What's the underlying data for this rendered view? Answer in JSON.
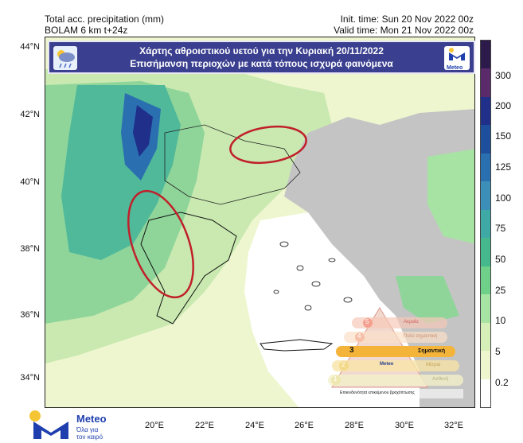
{
  "header": {
    "line1_left": "Total acc. precipitation (mm)",
    "line2_left": "BOLAM 6 km t+24z",
    "line1_right": "Init. time: Sun 20 Nov 2022 00z",
    "line2_right": "Valid time: Mon 21 Nov 2022 00z"
  },
  "banner": {
    "title": "Χάρτης αθροιστικού υετού για την Κυριακή 20/11/2022",
    "subtitle": "Επισήμανση περιοχών με κατά τόπους ισχυρά φαινόμενα",
    "right_logo_text": "Meteo"
  },
  "axes": {
    "lat_ticks": [
      "44°N",
      "42°N",
      "40°N",
      "38°N",
      "36°N",
      "34°N"
    ],
    "lon_ticks": [
      "20°E",
      "22°E",
      "24°E",
      "26°E",
      "28°E",
      "30°E",
      "32°E"
    ]
  },
  "colorbar": {
    "labels": [
      "300",
      "200",
      "150",
      "125",
      "100",
      "75",
      "50",
      "25",
      "10",
      "5",
      "0.2"
    ],
    "colors": [
      "#2b1a4a",
      "#5b2a6b",
      "#1f2f8a",
      "#1d4f9c",
      "#2a6fb0",
      "#3b8fb8",
      "#3ea9a5",
      "#45b98d",
      "#6fd08a",
      "#a7e3a3",
      "#d6efb9",
      "#eef6cf",
      "#ffffff"
    ]
  },
  "warning_scale": {
    "levels": [
      "1",
      "2",
      "3",
      "4",
      "5"
    ],
    "level_labels": [
      "Ακραία",
      "Πολύ σημαντική",
      "Σημαντική",
      "Μέτρια",
      "Ασθενή"
    ],
    "current_level": 3,
    "logo_text": "Meteo",
    "caption": "Επικινδυνότητα επικείμενου βροχόπτωσης"
  },
  "footer_logo": {
    "brand": "Meteo",
    "tagline_1": "Όλα για",
    "tagline_2": "τον καιρό"
  },
  "colors": {
    "sea_land_bg": "#d9efba",
    "turkey_land": "#c4c4c4",
    "banner_bg": "#3a3f8f",
    "highlight_ellipse": "#c0202a"
  }
}
